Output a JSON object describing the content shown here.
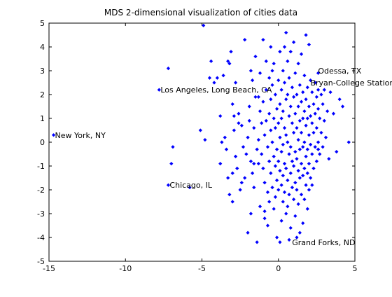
{
  "chart_data": {
    "type": "scatter",
    "title": "MDS 2-dimensional visualization of cities data",
    "xlabel": "",
    "ylabel": "",
    "xlim": [
      -15,
      5
    ],
    "ylim": [
      -5,
      5
    ],
    "xticks": [
      -15,
      -10,
      -5,
      0,
      5
    ],
    "yticks": [
      -5,
      -4,
      -3,
      -2,
      -1,
      0,
      1,
      2,
      3,
      4,
      5
    ],
    "xtick_labels": [
      "-15",
      "-10",
      "-5",
      "0",
      "5"
    ],
    "ytick_labels": [
      "-5",
      "-4",
      "-3",
      "-2",
      "-1",
      "0",
      "1",
      "2",
      "3",
      "4",
      "5"
    ],
    "grid": false,
    "marker_color": "#0000ff",
    "marker": "diamond",
    "series": [
      {
        "points": [
          [
            -14.7,
            0.3
          ],
          [
            -7.8,
            2.2
          ],
          [
            -7.2,
            3.1
          ],
          [
            -6.9,
            -0.2
          ],
          [
            -7.0,
            -0.9
          ],
          [
            -7.2,
            -1.8
          ],
          [
            -5.8,
            -1.9
          ],
          [
            -5.1,
            0.5
          ],
          [
            -4.9,
            4.9
          ],
          [
            -4.8,
            0.1
          ],
          [
            -4.5,
            2.7
          ],
          [
            -4.4,
            3.4
          ],
          [
            -4.2,
            2.5
          ],
          [
            -4.0,
            2.7
          ],
          [
            -3.8,
            1.1
          ],
          [
            -3.8,
            -0.9
          ],
          [
            -3.6,
            2.8
          ],
          [
            -3.5,
            0.2
          ],
          [
            -3.4,
            -0.3
          ],
          [
            -3.3,
            3.4
          ],
          [
            -3.2,
            3.3
          ],
          [
            -3.2,
            -2.2
          ],
          [
            -3.1,
            3.8
          ],
          [
            -3.0,
            1.6
          ],
          [
            -3.0,
            -1.3
          ],
          [
            -3.0,
            -2.5
          ],
          [
            -2.9,
            1.1
          ],
          [
            -2.9,
            0.5
          ],
          [
            -2.8,
            -0.6
          ],
          [
            -2.7,
            -1.1
          ],
          [
            -2.6,
            1.2
          ],
          [
            -2.6,
            0.8
          ],
          [
            -2.5,
            -2.0
          ],
          [
            -2.4,
            -1.7
          ],
          [
            -2.3,
            -0.2
          ],
          [
            -2.2,
            4.3
          ],
          [
            -2.2,
            -1.5
          ],
          [
            -2.0,
            0.2
          ],
          [
            -2.0,
            -3.8
          ],
          [
            -1.9,
            1.5
          ],
          [
            -1.9,
            0.9
          ],
          [
            -1.8,
            -0.8
          ],
          [
            -1.8,
            -3.0
          ],
          [
            -1.7,
            2.6
          ],
          [
            -1.7,
            -1.3
          ],
          [
            -1.6,
            0.6
          ],
          [
            -1.6,
            -1.9
          ],
          [
            -1.5,
            3.6
          ],
          [
            -1.5,
            1.9
          ],
          [
            -1.4,
            -0.3
          ],
          [
            -1.4,
            -4.2
          ],
          [
            -1.3,
            0.1
          ],
          [
            -1.3,
            -0.9
          ],
          [
            -1.2,
            2.9
          ],
          [
            -1.2,
            1.3
          ],
          [
            -1.2,
            -2.7
          ],
          [
            -1.1,
            0.8
          ],
          [
            -1.1,
            -0.5
          ],
          [
            -1.0,
            4.3
          ],
          [
            -1.0,
            1.7
          ],
          [
            -1.0,
            -1.1
          ],
          [
            -0.9,
            0.3
          ],
          [
            -0.9,
            -1.7
          ],
          [
            -0.9,
            -3.2
          ],
          [
            -0.8,
            3.4
          ],
          [
            -0.8,
            2.2
          ],
          [
            -0.8,
            0.9
          ],
          [
            -0.7,
            -0.2
          ],
          [
            -0.7,
            -2.1
          ],
          [
            -0.7,
            -3.5
          ],
          [
            -0.6,
            2.7
          ],
          [
            -0.6,
            1.2
          ],
          [
            -0.6,
            -0.8
          ],
          [
            -0.6,
            -2.5
          ],
          [
            -0.5,
            4.0
          ],
          [
            -0.5,
            1.8
          ],
          [
            -0.5,
            0.5
          ],
          [
            -0.5,
            -1.3
          ],
          [
            -0.4,
            2.4
          ],
          [
            -0.4,
            0.0
          ],
          [
            -0.4,
            -1.9
          ],
          [
            -0.3,
            3.3
          ],
          [
            -0.3,
            1.0
          ],
          [
            -0.3,
            -0.6
          ],
          [
            -0.3,
            -2.8
          ],
          [
            -0.2,
            2.0
          ],
          [
            -0.2,
            0.6
          ],
          [
            -0.2,
            -1.0
          ],
          [
            -0.2,
            -2.3
          ],
          [
            -0.1,
            1.4
          ],
          [
            -0.1,
            -0.3
          ],
          [
            -0.1,
            -1.6
          ],
          [
            -0.1,
            -4.0
          ],
          [
            0.0,
            2.6
          ],
          [
            0.0,
            0.8
          ],
          [
            0.0,
            -0.8
          ],
          [
            0.0,
            -2.0
          ],
          [
            0.1,
            3.8
          ],
          [
            0.1,
            1.6
          ],
          [
            0.1,
            0.2
          ],
          [
            0.1,
            -1.2
          ],
          [
            0.1,
            -4.2
          ],
          [
            0.2,
            2.2
          ],
          [
            0.2,
            1.0
          ],
          [
            0.2,
            -0.4
          ],
          [
            0.2,
            -1.8
          ],
          [
            0.2,
            -3.3
          ],
          [
            0.3,
            3.0
          ],
          [
            0.3,
            1.3
          ],
          [
            0.3,
            -0.1
          ],
          [
            0.3,
            -1.4
          ],
          [
            0.3,
            -2.5
          ],
          [
            0.4,
            2.5
          ],
          [
            0.4,
            0.6
          ],
          [
            0.4,
            -0.9
          ],
          [
            0.4,
            -2.1
          ],
          [
            0.5,
            4.6
          ],
          [
            0.5,
            1.8
          ],
          [
            0.5,
            0.3
          ],
          [
            0.5,
            -1.1
          ],
          [
            0.5,
            -3.0
          ],
          [
            0.6,
            3.4
          ],
          [
            0.6,
            2.0
          ],
          [
            0.6,
            0.0
          ],
          [
            0.6,
            -1.6
          ],
          [
            0.6,
            -2.7
          ],
          [
            0.7,
            2.7
          ],
          [
            0.7,
            1.1
          ],
          [
            0.7,
            -0.5
          ],
          [
            0.7,
            -2.2
          ],
          [
            0.7,
            -4.1
          ],
          [
            0.8,
            3.8
          ],
          [
            0.8,
            1.5
          ],
          [
            0.8,
            -0.2
          ],
          [
            0.8,
            -1.3
          ],
          [
            0.8,
            -3.6
          ],
          [
            0.9,
            2.3
          ],
          [
            0.9,
            0.8
          ],
          [
            0.9,
            -0.8
          ],
          [
            0.9,
            -1.9
          ],
          [
            1.0,
            4.2
          ],
          [
            1.0,
            1.9
          ],
          [
            1.0,
            0.4
          ],
          [
            1.0,
            -1.0
          ],
          [
            1.0,
            -2.4
          ],
          [
            1.1,
            2.9
          ],
          [
            1.1,
            1.2
          ],
          [
            1.1,
            -0.4
          ],
          [
            1.1,
            -1.7
          ],
          [
            1.1,
            -3.1
          ],
          [
            1.2,
            2.0
          ],
          [
            1.2,
            0.6
          ],
          [
            1.2,
            -0.7
          ],
          [
            1.2,
            -2.0
          ],
          [
            1.3,
            3.3
          ],
          [
            1.3,
            1.5
          ],
          [
            1.3,
            0.1
          ],
          [
            1.3,
            -1.2
          ],
          [
            1.3,
            -2.6
          ],
          [
            1.4,
            2.4
          ],
          [
            1.4,
            0.9
          ],
          [
            1.4,
            -0.3
          ],
          [
            1.4,
            -1.5
          ],
          [
            1.4,
            -3.8
          ],
          [
            1.5,
            3.7
          ],
          [
            1.5,
            1.7
          ],
          [
            1.5,
            0.4
          ],
          [
            1.5,
            -0.9
          ],
          [
            1.5,
            -2.2
          ],
          [
            1.6,
            2.1
          ],
          [
            1.6,
            1.0
          ],
          [
            1.6,
            -0.2
          ],
          [
            1.6,
            -1.4
          ],
          [
            1.6,
            -3.4
          ],
          [
            1.7,
            2.8
          ],
          [
            1.7,
            1.3
          ],
          [
            1.7,
            0.0
          ],
          [
            1.7,
            -1.1
          ],
          [
            1.7,
            -2.4
          ],
          [
            1.8,
            4.5
          ],
          [
            1.8,
            1.8
          ],
          [
            1.8,
            0.7
          ],
          [
            1.8,
            -0.6
          ],
          [
            1.8,
            -1.8
          ],
          [
            1.9,
            2.3
          ],
          [
            1.9,
            1.0
          ],
          [
            1.9,
            -0.3
          ],
          [
            1.9,
            -1.3
          ],
          [
            1.9,
            -2.8
          ],
          [
            2.0,
            4.1
          ],
          [
            2.0,
            1.5
          ],
          [
            2.0,
            0.3
          ],
          [
            2.0,
            -0.9
          ],
          [
            2.0,
            -2.0
          ],
          [
            2.1,
            2.6
          ],
          [
            2.1,
            1.1
          ],
          [
            2.1,
            -0.1
          ],
          [
            2.1,
            -1.5
          ],
          [
            2.2,
            2.1
          ],
          [
            2.2,
            0.8
          ],
          [
            2.2,
            -0.5
          ],
          [
            2.2,
            -1.8
          ],
          [
            2.3,
            1.6
          ],
          [
            2.3,
            0.4
          ],
          [
            2.3,
            -1.1
          ],
          [
            2.4,
            2.5
          ],
          [
            2.4,
            1.2
          ],
          [
            2.4,
            -0.2
          ],
          [
            2.5,
            1.9
          ],
          [
            2.5,
            0.6
          ],
          [
            2.5,
            -0.8
          ],
          [
            2.6,
            2.9
          ],
          [
            2.6,
            2.2
          ],
          [
            2.6,
            1.4
          ],
          [
            2.6,
            0.0
          ],
          [
            2.7,
            1.0
          ],
          [
            2.7,
            -0.5
          ],
          [
            2.8,
            2.0
          ],
          [
            2.8,
            0.4
          ],
          [
            2.9,
            1.6
          ],
          [
            2.9,
            -0.2
          ],
          [
            3.0,
            2.2
          ],
          [
            3.0,
            0.9
          ],
          [
            3.1,
            0.2
          ],
          [
            3.2,
            1.3
          ],
          [
            3.3,
            -0.7
          ],
          [
            3.4,
            2.1
          ],
          [
            3.6,
            1.2
          ],
          [
            3.8,
            -0.4
          ],
          [
            4.0,
            1.8
          ],
          [
            4.2,
            1.5
          ],
          [
            4.6,
            0.0
          ],
          [
            -3.7,
            0.0
          ],
          [
            -3.3,
            -1.5
          ],
          [
            -2.4,
            0.7
          ],
          [
            -2.1,
            -0.5
          ],
          [
            -1.8,
            3.0
          ],
          [
            -1.6,
            -0.9
          ],
          [
            -1.3,
            1.9
          ],
          [
            -0.9,
            -2.9
          ],
          [
            -0.4,
            3.0
          ],
          [
            0.4,
            4.0
          ],
          [
            1.2,
            -4.0
          ],
          [
            2.6,
            -0.3
          ],
          [
            -2.8,
            2.5
          ]
        ]
      }
    ],
    "annotations": [
      {
        "text": "New York, NY",
        "x": -14.7,
        "y": 0.3
      },
      {
        "text": "Los Angeles, Long Beach, CA",
        "x": -7.8,
        "y": 2.2
      },
      {
        "text": "Odessa, TX",
        "x": 2.5,
        "y": 3.0
      },
      {
        "text": "Bryan-College Station, TX",
        "x": 2.0,
        "y": 2.5
      },
      {
        "text": "Chicago, IL",
        "x": -7.2,
        "y": -1.8
      },
      {
        "text": "Grand Forks, ND",
        "x": 0.8,
        "y": -4.2
      }
    ]
  }
}
